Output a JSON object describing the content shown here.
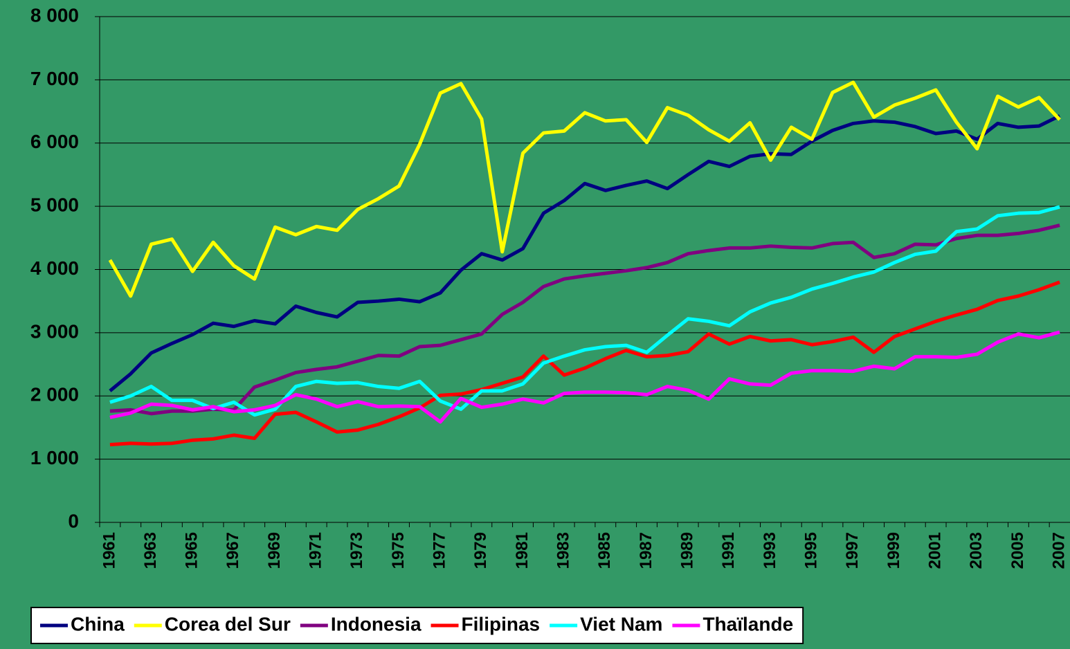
{
  "chart_data": {
    "type": "line",
    "categories": [
      "1961",
      null,
      "1963",
      null,
      "1965",
      null,
      "1967",
      null,
      "1969",
      null,
      "1971",
      null,
      "1973",
      null,
      "1975",
      null,
      "1977",
      null,
      "1979",
      null,
      "1981",
      null,
      "1983",
      null,
      "1985",
      null,
      "1987",
      null,
      "1989",
      null,
      "1991",
      null,
      "1993",
      null,
      "1995",
      null,
      "1997",
      null,
      "1999",
      null,
      "2001",
      null,
      "2003",
      null,
      "2005",
      null,
      "2007"
    ],
    "series": [
      {
        "name": "China",
        "color": "#000080",
        "values": [
          2080,
          2350,
          2680,
          2830,
          2970,
          3150,
          3100,
          3190,
          3140,
          3420,
          3320,
          3250,
          3480,
          3500,
          3530,
          3490,
          3630,
          3990,
          4250,
          4150,
          4330,
          4890,
          5090,
          5360,
          5250,
          5330,
          5400,
          5280,
          5500,
          5710,
          5630,
          5790,
          5830,
          5820,
          6030,
          6200,
          6310,
          6350,
          6330,
          6260,
          6150,
          6190,
          6060,
          6310,
          6250,
          6270,
          6430
        ]
      },
      {
        "name": "Corea del Sur",
        "color": "#ffff00",
        "values": [
          4150,
          3580,
          4400,
          4480,
          3970,
          4430,
          4060,
          3850,
          4670,
          4550,
          4680,
          4620,
          4950,
          5120,
          5320,
          5980,
          6790,
          6940,
          6380,
          4280,
          5840,
          6160,
          6190,
          6480,
          6350,
          6370,
          6010,
          6560,
          6440,
          6210,
          6030,
          6320,
          5730,
          6250,
          6060,
          6800,
          6960,
          6410,
          6600,
          6710,
          6840,
          6330,
          5910,
          6740,
          6570,
          6720,
          6370
        ]
      },
      {
        "name": "Indonesia",
        "color": "#800080",
        "values": [
          1760,
          1780,
          1720,
          1760,
          1760,
          1790,
          1780,
          2140,
          2250,
          2370,
          2420,
          2460,
          2550,
          2640,
          2630,
          2780,
          2800,
          2890,
          2980,
          3290,
          3480,
          3730,
          3850,
          3900,
          3940,
          3980,
          4030,
          4110,
          4250,
          4300,
          4340,
          4340,
          4370,
          4350,
          4340,
          4410,
          4430,
          4190,
          4250,
          4400,
          4390,
          4490,
          4540,
          4540,
          4570,
          4620,
          4700
        ]
      },
      {
        "name": "Filipinas",
        "color": "#ff0000",
        "values": [
          1230,
          1250,
          1240,
          1250,
          1300,
          1320,
          1380,
          1330,
          1710,
          1740,
          1590,
          1430,
          1460,
          1550,
          1670,
          1810,
          2010,
          2030,
          2100,
          2200,
          2300,
          2630,
          2330,
          2440,
          2590,
          2720,
          2620,
          2640,
          2700,
          2980,
          2820,
          2940,
          2870,
          2890,
          2810,
          2860,
          2930,
          2690,
          2940,
          3060,
          3180,
          3280,
          3370,
          3510,
          3580,
          3680,
          3800
        ]
      },
      {
        "name": "Viet Nam",
        "color": "#00ffff",
        "values": [
          1900,
          2000,
          2150,
          1930,
          1930,
          1800,
          1900,
          1700,
          1790,
          2150,
          2230,
          2200,
          2210,
          2150,
          2120,
          2230,
          1920,
          1790,
          2080,
          2080,
          2190,
          2520,
          2630,
          2730,
          2780,
          2800,
          2690,
          2960,
          3220,
          3180,
          3110,
          3330,
          3470,
          3560,
          3690,
          3780,
          3880,
          3960,
          4110,
          4240,
          4290,
          4600,
          4640,
          4850,
          4890,
          4900,
          4990
        ]
      },
      {
        "name": "Thaïlande",
        "color": "#ff00ff",
        "values": [
          1660,
          1730,
          1870,
          1850,
          1780,
          1830,
          1750,
          1780,
          1850,
          2020,
          1950,
          1830,
          1910,
          1830,
          1840,
          1830,
          1590,
          1960,
          1820,
          1870,
          1950,
          1890,
          2040,
          2060,
          2060,
          2050,
          2020,
          2150,
          2090,
          1950,
          2270,
          2190,
          2170,
          2360,
          2400,
          2400,
          2390,
          2470,
          2430,
          2620,
          2620,
          2610,
          2660,
          2850,
          2980,
          2920,
          3010
        ]
      }
    ],
    "ylim": [
      0,
      8000
    ],
    "yticks": [
      0,
      {
        "value": 1000,
        "label": "1 000"
      },
      {
        "value": 2000,
        "label": "2 000"
      },
      {
        "value": 3000,
        "label": "3 000"
      },
      {
        "value": 4000,
        "label": "4 000"
      },
      {
        "value": 5000,
        "label": "5 000"
      },
      {
        "value": 6000,
        "label": "6 000"
      },
      {
        "value": 7000,
        "label": "7 000"
      },
      {
        "value": 8000,
        "label": "8 000"
      }
    ],
    "grid": true,
    "legend": "bottom"
  }
}
